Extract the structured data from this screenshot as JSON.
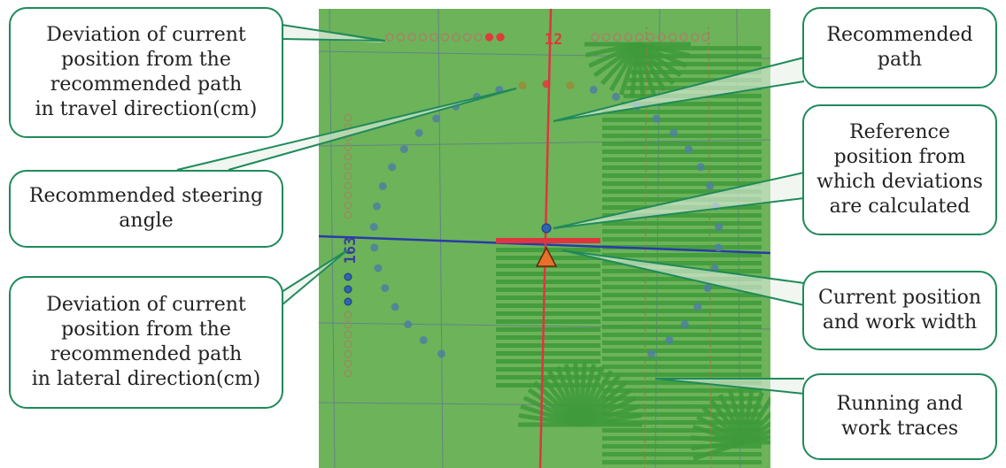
{
  "colors": {
    "field": "#6db35a",
    "traces": "#3e9a3a",
    "callout_border": "#1f8a5a",
    "recommended_path": "#e0343f",
    "reference_line": "#2a3aa8",
    "vehicle": "#e8702a",
    "dot_blue": "#2f64b0",
    "dot_red": "#e03a3a",
    "dot_olive": "#9a8a3a"
  },
  "readouts": {
    "travel_deviation": "12",
    "lateral_deviation": "163"
  },
  "callouts": {
    "travel": [
      "Deviation of current",
      "position from the",
      "recommended path",
      "in travel direction(cm)"
    ],
    "steering": [
      "Recommended steering",
      "angle"
    ],
    "lateral": [
      "Deviation of current",
      "position from the",
      "recommended path",
      "in lateral direction(cm)"
    ],
    "path": [
      "Recommended",
      "path"
    ],
    "reference": [
      "Reference",
      "position from",
      "which deviations",
      "are calculated"
    ],
    "current": [
      "Current position",
      "and work width"
    ],
    "traces": [
      "Running and",
      "work traces"
    ]
  },
  "icons": {
    "vehicle": "triangle-icon",
    "reference_marker": "dot-icon"
  }
}
